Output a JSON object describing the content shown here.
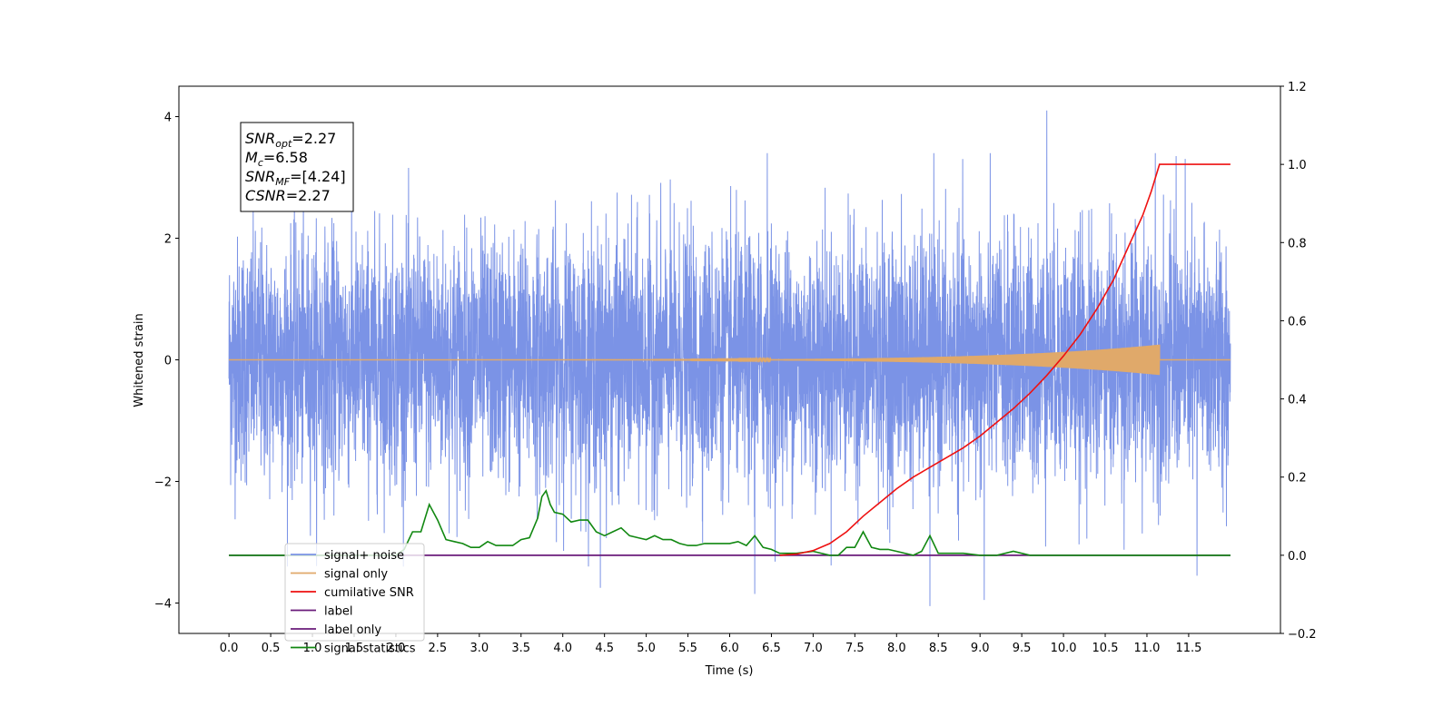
{
  "chart_data": {
    "type": "line",
    "title": "",
    "xlabel": "Time (s)",
    "ylabel": "Whitened strain",
    "y2label": "",
    "xlim": [
      -0.6,
      12.6
    ],
    "ylim": [
      -4.5,
      4.5
    ],
    "y2lim": [
      -0.2,
      1.2
    ],
    "xticks": [
      "0.0",
      "0.5",
      "1.0",
      "1.5",
      "2.0",
      "2.5",
      "3.0",
      "3.5",
      "4.0",
      "4.5",
      "5.0",
      "5.5",
      "6.0",
      "6.5",
      "7.0",
      "7.5",
      "8.0",
      "8.5",
      "9.0",
      "9.5",
      "10.0",
      "10.5",
      "11.0",
      "11.5"
    ],
    "yticks": [
      "−4",
      "−2",
      "0",
      "2",
      "4"
    ],
    "y2ticks": [
      "−0.2",
      "0.0",
      "0.2",
      "0.4",
      "0.6",
      "0.8",
      "1.0",
      "1.2"
    ],
    "grid": false,
    "legend_position": "lower-left",
    "annotation": {
      "lines": [
        {
          "sym": "SNR",
          "sub": "opt",
          "val": "=2.27"
        },
        {
          "sym": "M",
          "sub": "c",
          "val": "=6.58"
        },
        {
          "sym": "SNR",
          "sub": "MF",
          "val": "=[4.24]"
        },
        {
          "sym": "CSNR",
          "sub": "",
          "val": "=2.27"
        }
      ]
    },
    "series": [
      {
        "name": "signal+ noise",
        "axis": "left",
        "color": "#7b93e6",
        "kind": "noise",
        "t_range": [
          0.0,
          12.0
        ],
        "approx_std": 1.0,
        "envelope_max": 3.4,
        "spikes": [
          {
            "t": 9.8,
            "y": 4.1
          },
          {
            "t": 6.45,
            "y": 3.4
          },
          {
            "t": 11.1,
            "y": 3.4
          },
          {
            "t": 11.35,
            "y": 3.35
          },
          {
            "t": 8.4,
            "y": -4.05
          },
          {
            "t": 9.05,
            "y": -3.95
          },
          {
            "t": 4.45,
            "y": -3.75
          },
          {
            "t": 6.3,
            "y": -3.85
          },
          {
            "t": 11.6,
            "y": -3.55
          }
        ]
      },
      {
        "name": "signal only",
        "axis": "left",
        "color": "#e0a96a",
        "kind": "chirp",
        "t_range": [
          0.0,
          11.15
        ],
        "amplitude_end": 0.25
      },
      {
        "name": "cumilative SNR",
        "axis": "right",
        "color": "#ee1111",
        "x": [
          6.6,
          6.8,
          7.0,
          7.2,
          7.4,
          7.6,
          7.8,
          8.0,
          8.2,
          8.4,
          8.6,
          8.8,
          9.0,
          9.2,
          9.4,
          9.6,
          9.8,
          10.0,
          10.2,
          10.4,
          10.6,
          10.8,
          10.95,
          11.05,
          11.15,
          11.15,
          12.0
        ],
        "values": [
          0.0,
          0.003,
          0.012,
          0.03,
          0.06,
          0.1,
          0.135,
          0.17,
          0.2,
          0.225,
          0.25,
          0.275,
          0.305,
          0.34,
          0.375,
          0.415,
          0.46,
          0.51,
          0.565,
          0.63,
          0.705,
          0.8,
          0.87,
          0.93,
          1.0,
          1.0,
          1.0
        ]
      },
      {
        "name": "label",
        "axis": "right",
        "color": "#6a1b7a",
        "x": [
          0.0,
          12.0
        ],
        "values": [
          0.0,
          0.0
        ]
      },
      {
        "name": "label only",
        "axis": "right",
        "color": "#6a1b7a",
        "x": [],
        "values": []
      },
      {
        "name": "signal statistics",
        "axis": "right",
        "color": "#118811",
        "x": [
          0.0,
          2.0,
          2.1,
          2.2,
          2.3,
          2.4,
          2.5,
          2.6,
          2.7,
          2.8,
          2.9,
          3.0,
          3.1,
          3.2,
          3.3,
          3.4,
          3.5,
          3.6,
          3.7,
          3.75,
          3.8,
          3.85,
          3.9,
          4.0,
          4.1,
          4.2,
          4.3,
          4.4,
          4.5,
          4.6,
          4.7,
          4.8,
          4.9,
          5.0,
          5.1,
          5.2,
          5.3,
          5.4,
          5.5,
          5.6,
          5.7,
          5.8,
          5.9,
          6.0,
          6.1,
          6.2,
          6.3,
          6.4,
          6.5,
          6.6,
          6.8,
          7.0,
          7.2,
          7.3,
          7.4,
          7.5,
          7.6,
          7.7,
          7.8,
          7.9,
          8.0,
          8.2,
          8.3,
          8.4,
          8.5,
          8.6,
          8.8,
          9.0,
          9.2,
          9.4,
          9.6,
          9.8,
          10.0,
          12.0
        ],
        "values": [
          0.0,
          0.0,
          0.015,
          0.06,
          0.06,
          0.13,
          0.09,
          0.04,
          0.035,
          0.03,
          0.02,
          0.02,
          0.035,
          0.025,
          0.025,
          0.025,
          0.04,
          0.045,
          0.095,
          0.15,
          0.165,
          0.13,
          0.11,
          0.105,
          0.085,
          0.09,
          0.09,
          0.06,
          0.05,
          0.06,
          0.07,
          0.05,
          0.045,
          0.04,
          0.05,
          0.04,
          0.04,
          0.03,
          0.025,
          0.025,
          0.03,
          0.03,
          0.03,
          0.03,
          0.035,
          0.025,
          0.05,
          0.02,
          0.015,
          0.005,
          0.005,
          0.01,
          0.0,
          0.0,
          0.02,
          0.02,
          0.06,
          0.02,
          0.015,
          0.015,
          0.01,
          0.0,
          0.01,
          0.05,
          0.005,
          0.005,
          0.005,
          0.0,
          0.0,
          0.01,
          0.0,
          0.0,
          0.0,
          0.0
        ]
      }
    ],
    "legend_order": [
      "signal+ noise",
      "signal only",
      "cumilative SNR",
      "label",
      "label only",
      "signal statistics"
    ]
  }
}
